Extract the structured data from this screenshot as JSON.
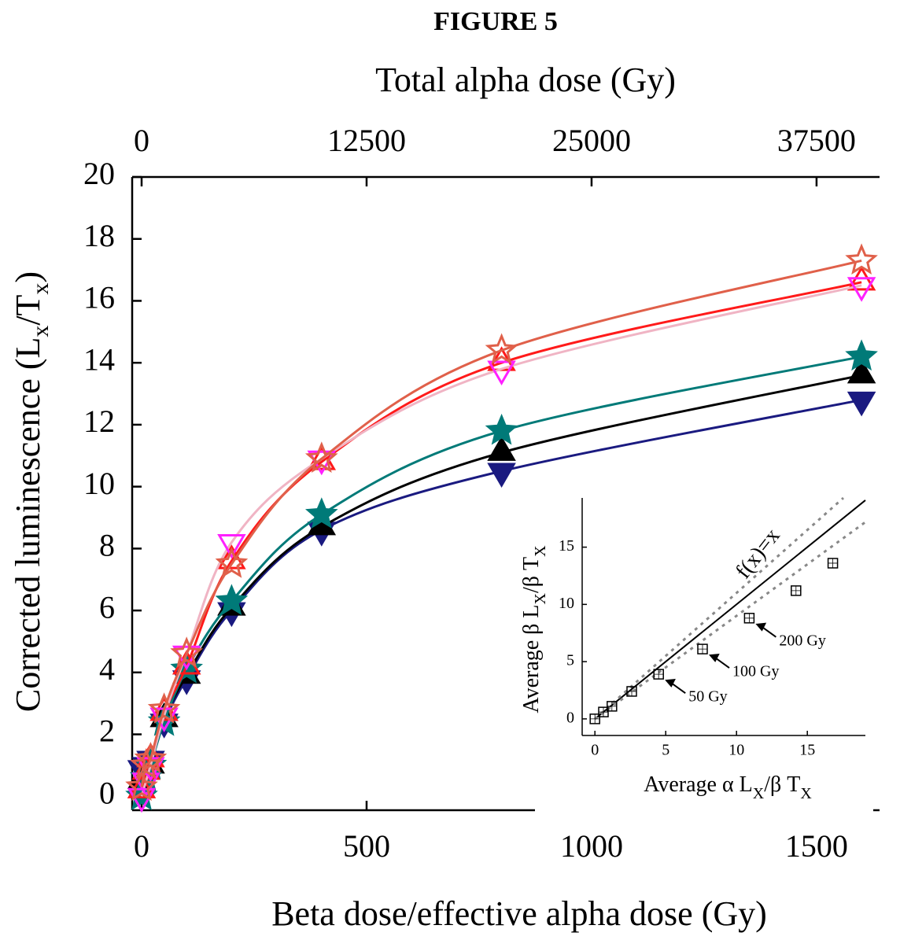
{
  "chart_data": [
    {
      "type": "scatter",
      "title": "FIGURE 5",
      "x_label": "Beta dose/effective alpha dose (Gy)",
      "x2_label": "Total alpha dose (Gy)",
      "y_label": [
        "Corrected luminescence (L",
        "x",
        "/T",
        "x",
        ")"
      ],
      "x": [
        0,
        10,
        20,
        50,
        100,
        200,
        400,
        800,
        1600
      ],
      "xlim": [
        -21,
        1640
      ],
      "xticks": [
        0,
        500,
        1000,
        1500
      ],
      "x2lim": [
        -525,
        41000
      ],
      "x2ticks": [
        0,
        12500,
        25000,
        37500
      ],
      "ylim": [
        -0.45,
        20
      ],
      "yticks": [
        0,
        2,
        4,
        6,
        8,
        10,
        12,
        14,
        16,
        18,
        20
      ],
      "series": [
        {
          "color": "#1a1a80",
          "line_color": "#1a1a80",
          "marker": "triangle-down",
          "filled": true,
          "values": [
            0.9,
            1.0,
            1.2,
            2.4,
            3.8,
            6.0,
            8.6,
            10.5,
            12.8
          ]
        },
        {
          "color": "#000000",
          "line_color": "#000000",
          "marker": "triangle-up",
          "filled": true,
          "values": [
            0.5,
            0.8,
            1.0,
            2.5,
            3.9,
            6.1,
            8.7,
            11.1,
            13.6
          ]
        },
        {
          "color": "#007a78",
          "line_color": "#007a78",
          "marker": "star",
          "filled": true,
          "values": [
            0.0,
            0.6,
            1.0,
            2.4,
            4.1,
            6.3,
            9.1,
            11.8,
            14.2
          ]
        },
        {
          "color": "#ff1a1a",
          "line_color": "#ff1a1a",
          "marker": "triangle-up",
          "filled": false,
          "values": [
            0.2,
            0.8,
            1.2,
            2.7,
            4.2,
            7.6,
            10.8,
            14.0,
            16.6
          ]
        },
        {
          "color": "#ff20ff",
          "line_color": "#f0b4c4",
          "marker": "triangle-down",
          "filled": false,
          "values": [
            0.0,
            0.5,
            1.0,
            2.6,
            4.6,
            8.2,
            10.9,
            13.8,
            16.5
          ]
        },
        {
          "color": "#e0604a",
          "line_color": "#e0604a",
          "marker": "star",
          "filled": false,
          "values": [
            0.3,
            1.0,
            1.2,
            2.8,
            4.6,
            7.5,
            10.9,
            14.4,
            17.3
          ]
        }
      ]
    },
    {
      "type": "scatter",
      "x_label": [
        "Average α L",
        "X",
        "/β T",
        "X"
      ],
      "y_label": [
        "Average β L",
        "X",
        "/β T",
        "X"
      ],
      "x": [
        0,
        0.6,
        1.2,
        2.6,
        4.5,
        7.6,
        10.9,
        14.2,
        16.8
      ],
      "values": [
        0,
        0.6,
        1.1,
        2.4,
        3.9,
        6.1,
        8.8,
        11.2,
        13.6
      ],
      "xlim": [
        -0.9,
        19.1
      ],
      "xticks": [
        0,
        5,
        10,
        15
      ],
      "ylim": [
        -1.45,
        19.3
      ],
      "yticks": [
        0,
        5,
        10,
        15
      ],
      "reference_lines": [
        {
          "slope": 1,
          "dashed": false,
          "label": "f(x)=x"
        },
        {
          "slope": 1.1,
          "dashed": true
        },
        {
          "slope": 0.9,
          "dashed": true
        }
      ],
      "annotations": [
        "200 Gy",
        "100 Gy",
        "50 Gy"
      ]
    }
  ]
}
